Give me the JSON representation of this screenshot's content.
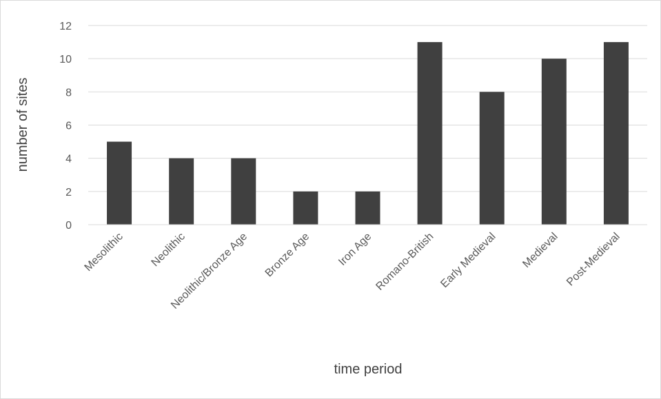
{
  "chart_data": {
    "type": "bar",
    "title": "",
    "categories": [
      "Mesolithic",
      "Neolithic",
      "Neolithic/Bronze Age",
      "Bronze Age",
      "Iron Age",
      "Romano-British",
      "Early Medieval",
      "Medieval",
      "Post-Medieval"
    ],
    "values": [
      5,
      4,
      4,
      2,
      2,
      11,
      8,
      10,
      11
    ],
    "xlabel": "time period",
    "ylabel": "number of sites",
    "ylim": [
      0,
      12
    ],
    "yticks": [
      0,
      2,
      4,
      6,
      8,
      10,
      12
    ],
    "grid": true,
    "legend": "none",
    "bar_color": "#404040"
  }
}
